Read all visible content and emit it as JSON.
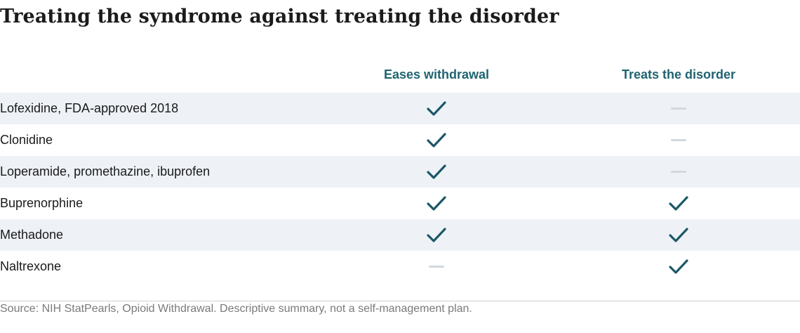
{
  "chart_data": {
    "type": "table",
    "title": "Treating the syndrome against treating the disorder",
    "columns": [
      "Eases withdrawal",
      "Treats the disorder"
    ],
    "rows": [
      {
        "label": "Lofexidine, FDA-approved 2018",
        "values": [
          true,
          false
        ]
      },
      {
        "label": "Clonidine",
        "values": [
          true,
          false
        ]
      },
      {
        "label": "Loperamide, promethazine, ibuprofen",
        "values": [
          true,
          false
        ]
      },
      {
        "label": "Buprenorphine",
        "values": [
          true,
          true
        ]
      },
      {
        "label": "Methadone",
        "values": [
          true,
          true
        ]
      },
      {
        "label": "Naltrexone",
        "values": [
          false,
          true
        ]
      }
    ],
    "source": "Source: NIH StatPearls, Opioid Withdrawal. Descriptive summary, not a self-management plan."
  },
  "icons": {
    "yes": "check-icon",
    "no": "dash-icon"
  },
  "colors": {
    "accent": "#1f6470",
    "check": "#1c5866",
    "dash": "#d2d8df",
    "row_shade": "#eef2f7"
  }
}
